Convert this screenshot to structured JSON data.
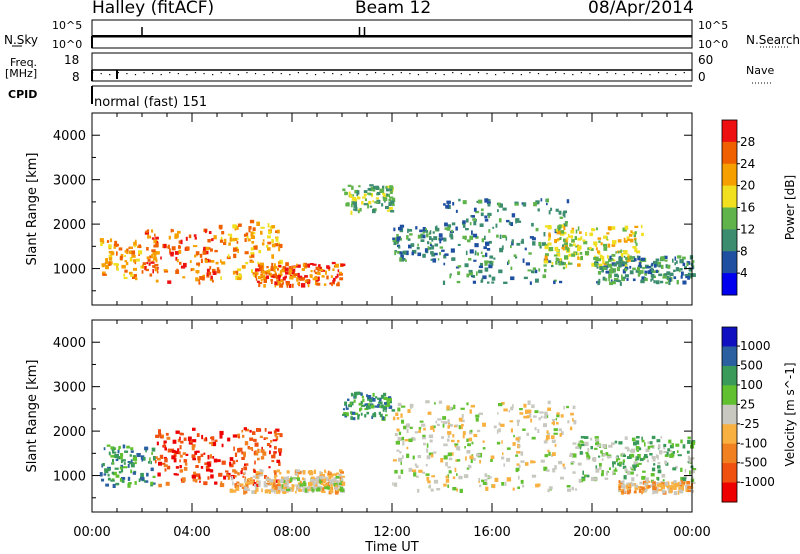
{
  "header": {
    "title": "Halley (fitACF)",
    "beam": "Beam 12",
    "date": "08/Apr/2014"
  },
  "top_panels": {
    "nsky_label": "N.Sky",
    "nsky_ticks": [
      "10^5",
      "10^0"
    ],
    "nsearch_label": "N.Search",
    "nsearch_ticks": [
      "10^5",
      "10^0"
    ],
    "freq_label": "Freq.",
    "freq_unit": "[MHz]",
    "freq_ticks": [
      "18",
      "8"
    ],
    "nave_label": "Nave",
    "nave_ticks": [
      "60",
      "0"
    ],
    "cpid_label": "CPID",
    "cpid_text": "normal (fast) 151"
  },
  "colors": {
    "power_scale": [
      "#0000ee",
      "#1f4fa0",
      "#3c8c6f",
      "#5fb34a",
      "#f0e020",
      "#f5a000",
      "#f06000",
      "#ee1010"
    ],
    "velocity_scale": [
      "#ee0000",
      "#f05010",
      "#f08020",
      "#f8b040",
      "#c8c8c0",
      "#60c030",
      "#3a9a5a",
      "#2a60a0",
      "#1010c0"
    ]
  },
  "chart_data": [
    {
      "type": "heatmap",
      "name": "power",
      "ylabel": "Slant Range [km]",
      "xlabel": "Time UT",
      "x_ticks": [
        "00:00",
        "04:00",
        "08:00",
        "12:00",
        "16:00",
        "20:00",
        "00:00"
      ],
      "y_ticks": [
        1000,
        2000,
        3000,
        4000
      ],
      "ylim": [
        180,
        4500
      ],
      "xlim_hours": [
        0,
        24
      ],
      "colorbar_label": "Power [dB]",
      "colorbar_ticks": [
        "28",
        "24",
        "20",
        "16",
        "12",
        "8",
        "4"
      ],
      "echo_regions": [
        {
          "t0": 0.3,
          "t1": 2.0,
          "r0": 800,
          "r1": 1700,
          "level": 5
        },
        {
          "t0": 2.0,
          "t1": 5.0,
          "r0": 700,
          "r1": 1900,
          "level": 6
        },
        {
          "t0": 5.0,
          "t1": 7.5,
          "r0": 800,
          "r1": 2100,
          "level": 5
        },
        {
          "t0": 6.5,
          "t1": 10.0,
          "r0": 650,
          "r1": 1150,
          "level": 6
        },
        {
          "t0": 10.0,
          "t1": 12.0,
          "r0": 2300,
          "r1": 2900,
          "level": 3
        },
        {
          "t0": 12.0,
          "t1": 14.0,
          "r0": 1200,
          "r1": 2000,
          "level": 2
        },
        {
          "t0": 14.0,
          "t1": 19.0,
          "r0": 700,
          "r1": 2600,
          "level": 2
        },
        {
          "t0": 18.0,
          "t1": 22.0,
          "r0": 1100,
          "r1": 2000,
          "level": 4
        },
        {
          "t0": 20.0,
          "t1": 24.0,
          "r0": 700,
          "r1": 1300,
          "level": 2
        }
      ]
    },
    {
      "type": "heatmap",
      "name": "velocity",
      "ylabel": "Slant Range [km]",
      "xlabel": "Time UT",
      "x_ticks": [
        "00:00",
        "04:00",
        "08:00",
        "12:00",
        "16:00",
        "20:00",
        "00:00"
      ],
      "y_ticks": [
        1000,
        2000,
        3000,
        4000
      ],
      "ylim": [
        180,
        4500
      ],
      "xlim_hours": [
        0,
        24
      ],
      "colorbar_label": "Velocity [m s^-1]",
      "colorbar_ticks": [
        "1000",
        "500",
        "100",
        "25",
        "-25",
        "-100",
        "-500",
        "-1000"
      ],
      "echo_regions": [
        {
          "t0": 0.3,
          "t1": 2.5,
          "r0": 800,
          "r1": 1700,
          "level": 6
        },
        {
          "t0": 2.5,
          "t1": 7.5,
          "r0": 800,
          "r1": 2100,
          "level": 1
        },
        {
          "t0": 5.5,
          "t1": 10.0,
          "r0": 650,
          "r1": 1150,
          "level": 3
        },
        {
          "t0": 7.5,
          "t1": 10.0,
          "r0": 700,
          "r1": 1000,
          "level": 4
        },
        {
          "t0": 10.0,
          "t1": 12.0,
          "r0": 2300,
          "r1": 2900,
          "level": 6
        },
        {
          "t0": 12.0,
          "t1": 19.5,
          "r0": 700,
          "r1": 2700,
          "level": 4
        },
        {
          "t0": 19.5,
          "t1": 24.0,
          "r0": 900,
          "r1": 1900,
          "level": 5
        },
        {
          "t0": 21.0,
          "t1": 24.0,
          "r0": 650,
          "r1": 900,
          "level": 3
        }
      ]
    }
  ]
}
